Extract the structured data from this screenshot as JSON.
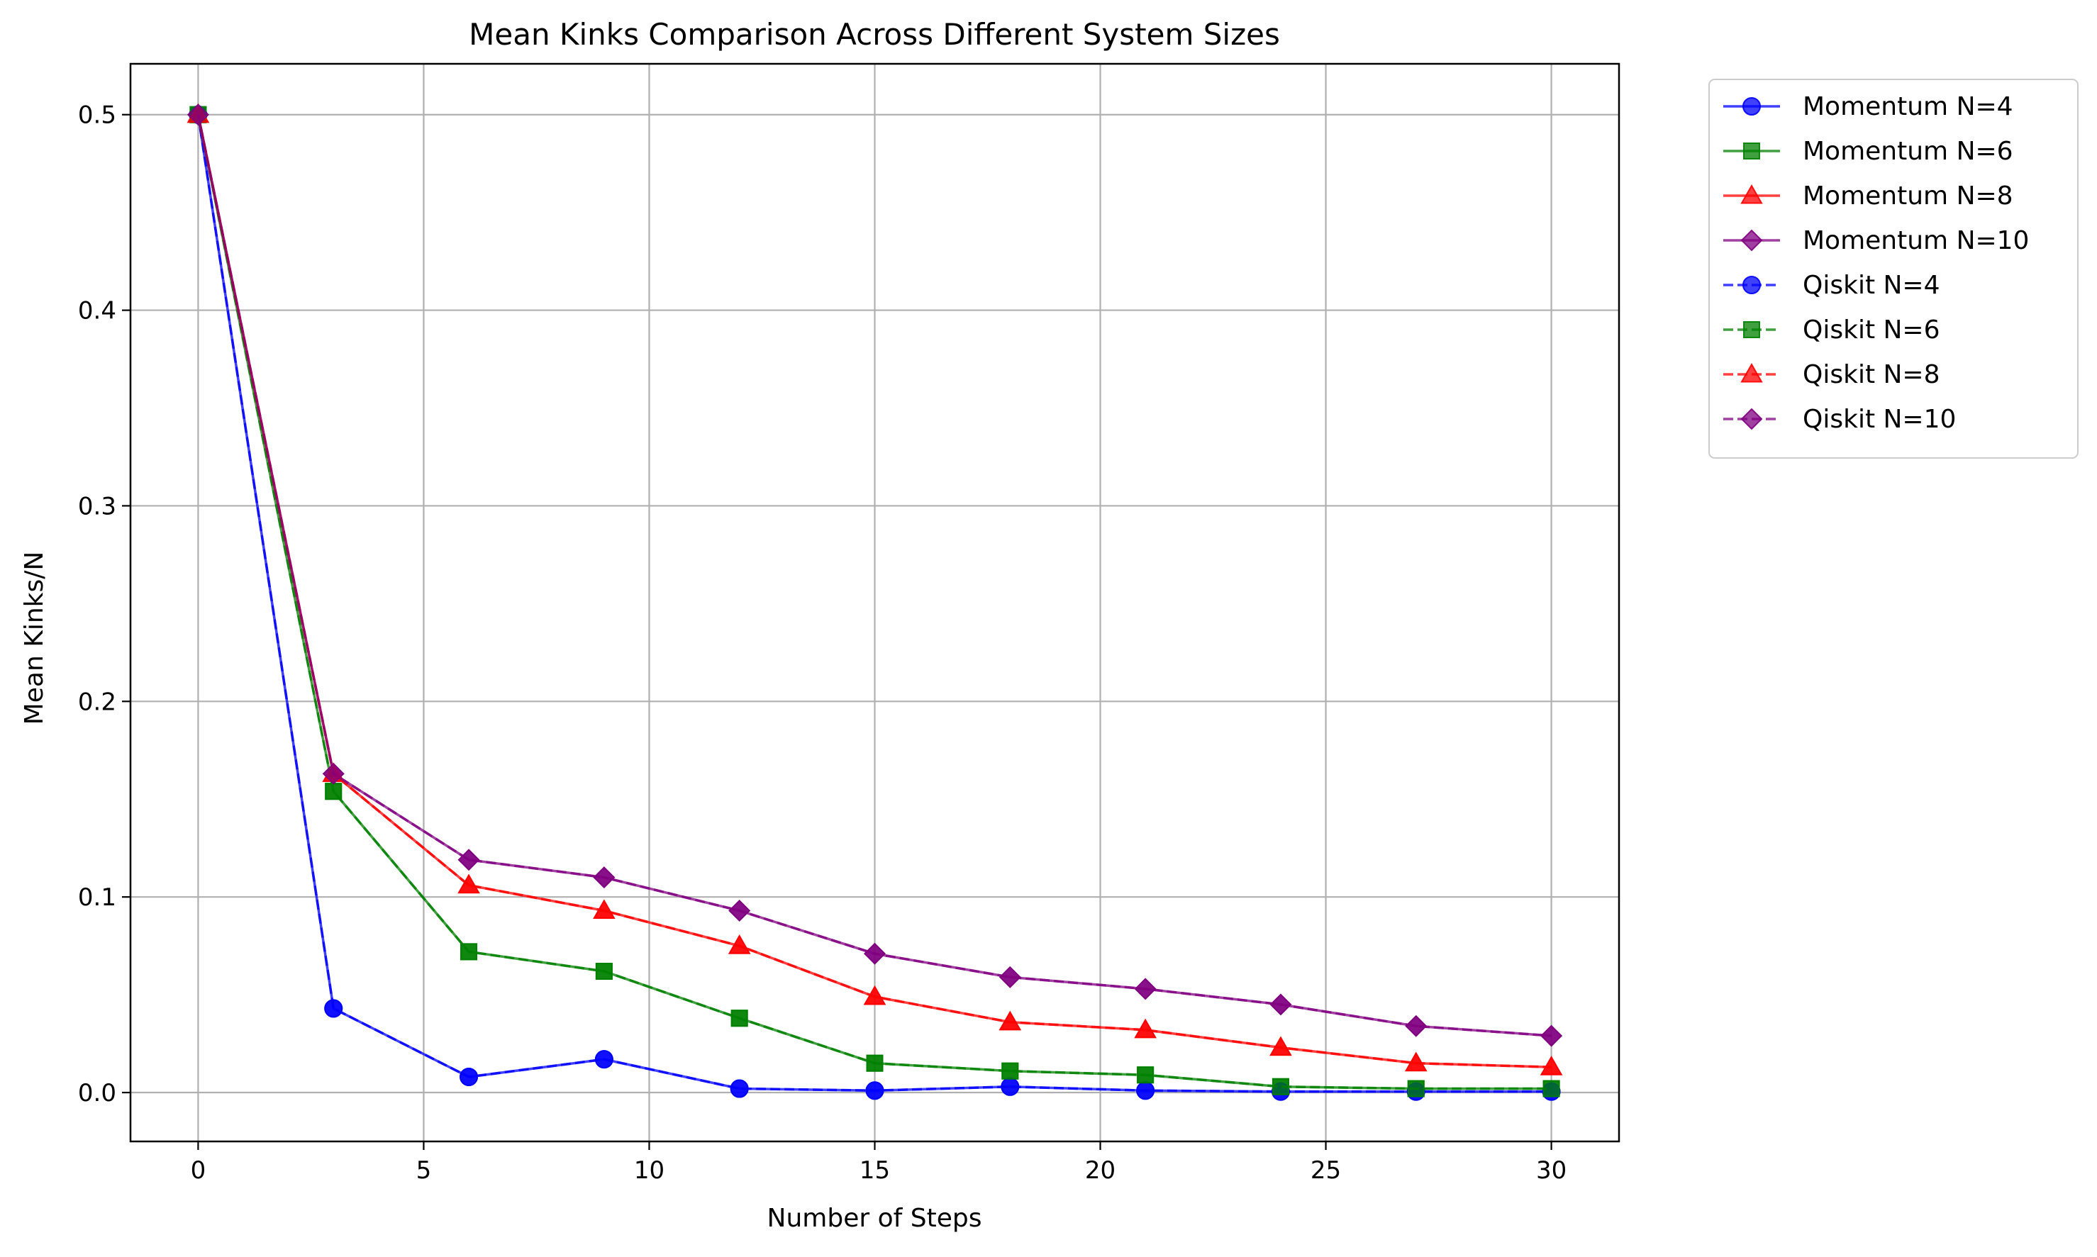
{
  "chart_data": {
    "type": "line",
    "title": "Mean Kinks Comparison Across Different System Sizes",
    "xlabel": "Number of Steps",
    "ylabel": "Mean Kinks/N",
    "xlim": [
      -1.5,
      31.5
    ],
    "ylim": [
      -0.025,
      0.526
    ],
    "xticks": [
      0,
      5,
      10,
      15,
      20,
      25,
      30
    ],
    "xtick_labels": [
      "0",
      "5",
      "10",
      "15",
      "20",
      "25",
      "30"
    ],
    "yticks": [
      0.0,
      0.1,
      0.2,
      0.3,
      0.4,
      0.5
    ],
    "ytick_labels": [
      "0.0",
      "0.1",
      "0.2",
      "0.3",
      "0.4",
      "0.5"
    ],
    "grid": true,
    "legend_position": "outside-top-right",
    "x": [
      0,
      3,
      6,
      9,
      12,
      15,
      18,
      21,
      24,
      27,
      30
    ],
    "series": [
      {
        "name": "Momentum N=4",
        "color": "#0000ff",
        "marker": "circle",
        "linestyle": "solid",
        "values": [
          0.5,
          0.043,
          0.008,
          0.017,
          0.002,
          0.001,
          0.003,
          0.001,
          0.0005,
          0.0005,
          0.0005
        ]
      },
      {
        "name": "Momentum N=6",
        "color": "#008000",
        "marker": "square",
        "linestyle": "solid",
        "values": [
          0.5,
          0.154,
          0.072,
          0.062,
          0.038,
          0.015,
          0.011,
          0.009,
          0.003,
          0.002,
          0.002
        ]
      },
      {
        "name": "Momentum N=8",
        "color": "#ff0000",
        "marker": "triangle",
        "linestyle": "solid",
        "values": [
          0.5,
          0.163,
          0.106,
          0.093,
          0.075,
          0.049,
          0.036,
          0.032,
          0.023,
          0.015,
          0.013
        ]
      },
      {
        "name": "Momentum N=10",
        "color": "#800080",
        "marker": "diamond",
        "linestyle": "solid",
        "values": [
          0.5,
          0.163,
          0.119,
          0.11,
          0.093,
          0.071,
          0.059,
          0.053,
          0.045,
          0.034,
          0.029
        ]
      },
      {
        "name": "Qiskit N=4",
        "color": "#0000ff",
        "marker": "circle",
        "linestyle": "dashed",
        "values": [
          0.5,
          0.043,
          0.008,
          0.017,
          0.002,
          0.001,
          0.003,
          0.001,
          0.0005,
          0.0005,
          0.0005
        ]
      },
      {
        "name": "Qiskit N=6",
        "color": "#008000",
        "marker": "square",
        "linestyle": "dashed",
        "values": [
          0.5,
          0.154,
          0.072,
          0.062,
          0.038,
          0.015,
          0.011,
          0.009,
          0.003,
          0.002,
          0.002
        ]
      },
      {
        "name": "Qiskit N=8",
        "color": "#ff0000",
        "marker": "triangle",
        "linestyle": "dashed",
        "values": [
          0.5,
          0.163,
          0.106,
          0.093,
          0.075,
          0.049,
          0.036,
          0.032,
          0.023,
          0.015,
          0.013
        ]
      },
      {
        "name": "Qiskit N=10",
        "color": "#800080",
        "marker": "diamond",
        "linestyle": "dashed",
        "values": [
          0.5,
          0.163,
          0.119,
          0.11,
          0.093,
          0.071,
          0.059,
          0.053,
          0.045,
          0.034,
          0.029
        ]
      }
    ]
  }
}
